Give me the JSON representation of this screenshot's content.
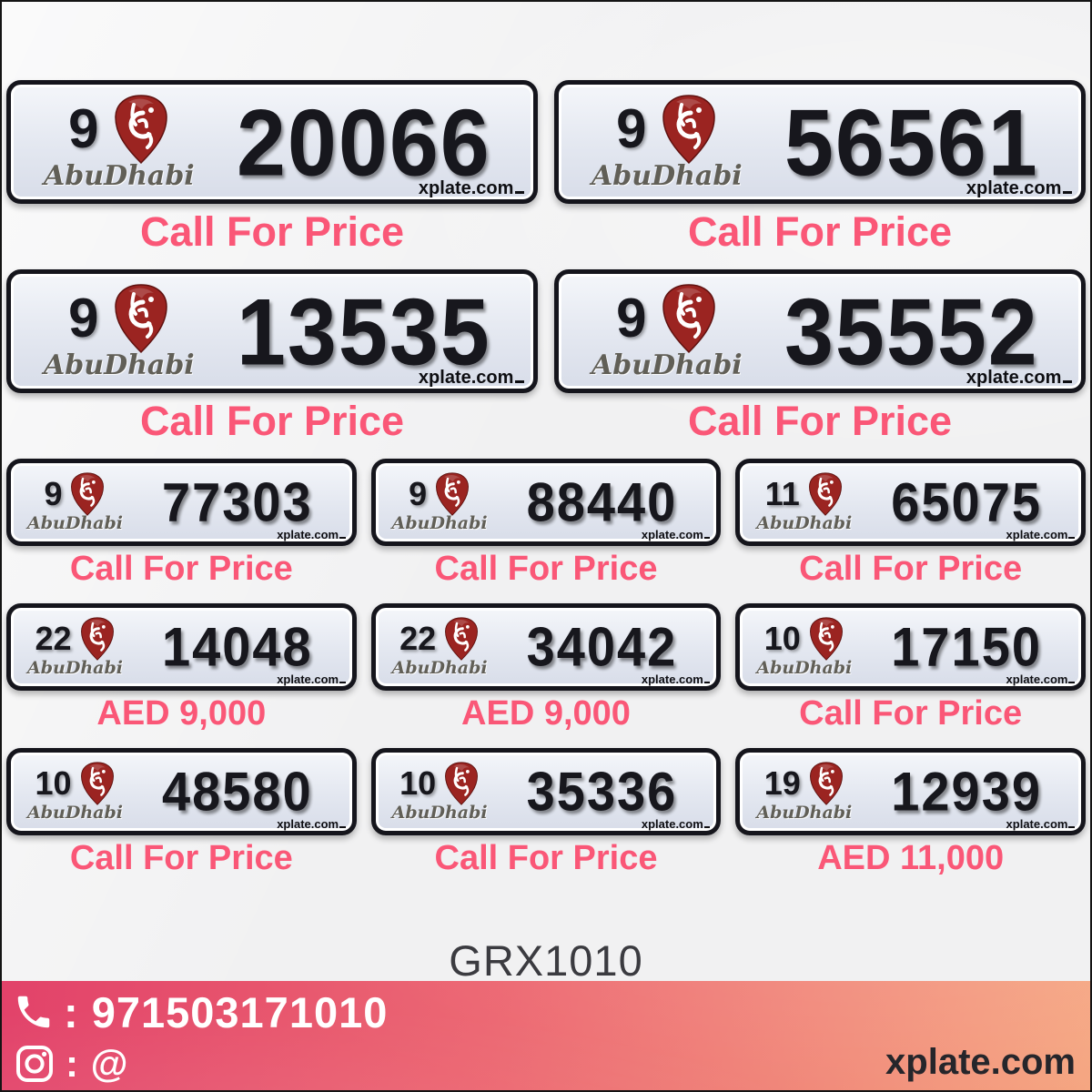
{
  "page": {
    "code": "GRX1010"
  },
  "colors": {
    "price_pink": "#fa5777",
    "logo_red": "#9b2421",
    "footer_gradient_left": "#e2426a",
    "footer_gradient_right": "#f5a47e",
    "footer_site_color": "#26262b"
  },
  "plates": [
    {
      "category": "9",
      "number": "20066",
      "emirate": "AbuDhabi",
      "watermark": "xplate.com",
      "price": "Call For Price"
    },
    {
      "category": "9",
      "number": "56561",
      "emirate": "AbuDhabi",
      "watermark": "xplate.com",
      "price": "Call For Price"
    },
    {
      "category": "9",
      "number": "13535",
      "emirate": "AbuDhabi",
      "watermark": "xplate.com",
      "price": "Call For Price"
    },
    {
      "category": "9",
      "number": "35552",
      "emirate": "AbuDhabi",
      "watermark": "xplate.com",
      "price": "Call For Price"
    },
    {
      "category": "9",
      "number": "77303",
      "emirate": "AbuDhabi",
      "watermark": "xplate.com",
      "price": "Call For Price"
    },
    {
      "category": "9",
      "number": "88440",
      "emirate": "AbuDhabi",
      "watermark": "xplate.com",
      "price": "Call For Price"
    },
    {
      "category": "11",
      "number": "65075",
      "emirate": "AbuDhabi",
      "watermark": "xplate.com",
      "price": "Call For Price"
    },
    {
      "category": "22",
      "number": "14048",
      "emirate": "AbuDhabi",
      "watermark": "xplate.com",
      "price": "AED 9,000"
    },
    {
      "category": "22",
      "number": "34042",
      "emirate": "AbuDhabi",
      "watermark": "xplate.com",
      "price": "AED 9,000"
    },
    {
      "category": "10",
      "number": "17150",
      "emirate": "AbuDhabi",
      "watermark": "xplate.com",
      "price": "Call For Price"
    },
    {
      "category": "10",
      "number": "48580",
      "emirate": "AbuDhabi",
      "watermark": "xplate.com",
      "price": "Call For Price"
    },
    {
      "category": "10",
      "number": "35336",
      "emirate": "AbuDhabi",
      "watermark": "xplate.com",
      "price": "Call For Price"
    },
    {
      "category": "19",
      "number": "12939",
      "emirate": "AbuDhabi",
      "watermark": "xplate.com",
      "price": "AED 11,000"
    }
  ],
  "footer": {
    "phone": ": 971503171010",
    "instagram": ": @",
    "site": "xplate.com"
  }
}
